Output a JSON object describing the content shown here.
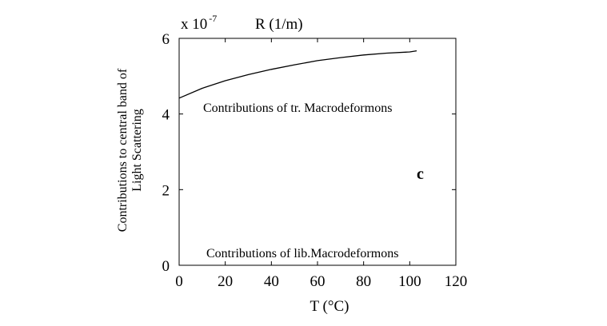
{
  "chart_data": {
    "type": "line",
    "scale_label": "x 10",
    "scale_exponent": "-7",
    "unit_label": "R (1/m)",
    "xlabel": "T (°C)",
    "ylabel_line1": "Contributions to central band of",
    "ylabel_line2": "Light Scattering",
    "xlim": [
      0,
      120
    ],
    "ylim": [
      0,
      6
    ],
    "x_ticks": [
      "0",
      "20",
      "40",
      "60",
      "80",
      "100",
      "120"
    ],
    "y_ticks": [
      "0",
      "2",
      "4",
      "6"
    ],
    "series": [
      {
        "x": [
          0,
          10,
          20,
          30,
          40,
          50,
          60,
          70,
          80,
          90,
          100,
          103
        ],
        "values": [
          4.42,
          4.68,
          4.88,
          5.04,
          5.18,
          5.3,
          5.41,
          5.49,
          5.56,
          5.61,
          5.64,
          5.67
        ]
      }
    ],
    "annotations": {
      "upper": "Contributions of tr. Macrodeformons",
      "lower": "Contributions of lib.Macrodeformons",
      "panel": "c"
    }
  }
}
